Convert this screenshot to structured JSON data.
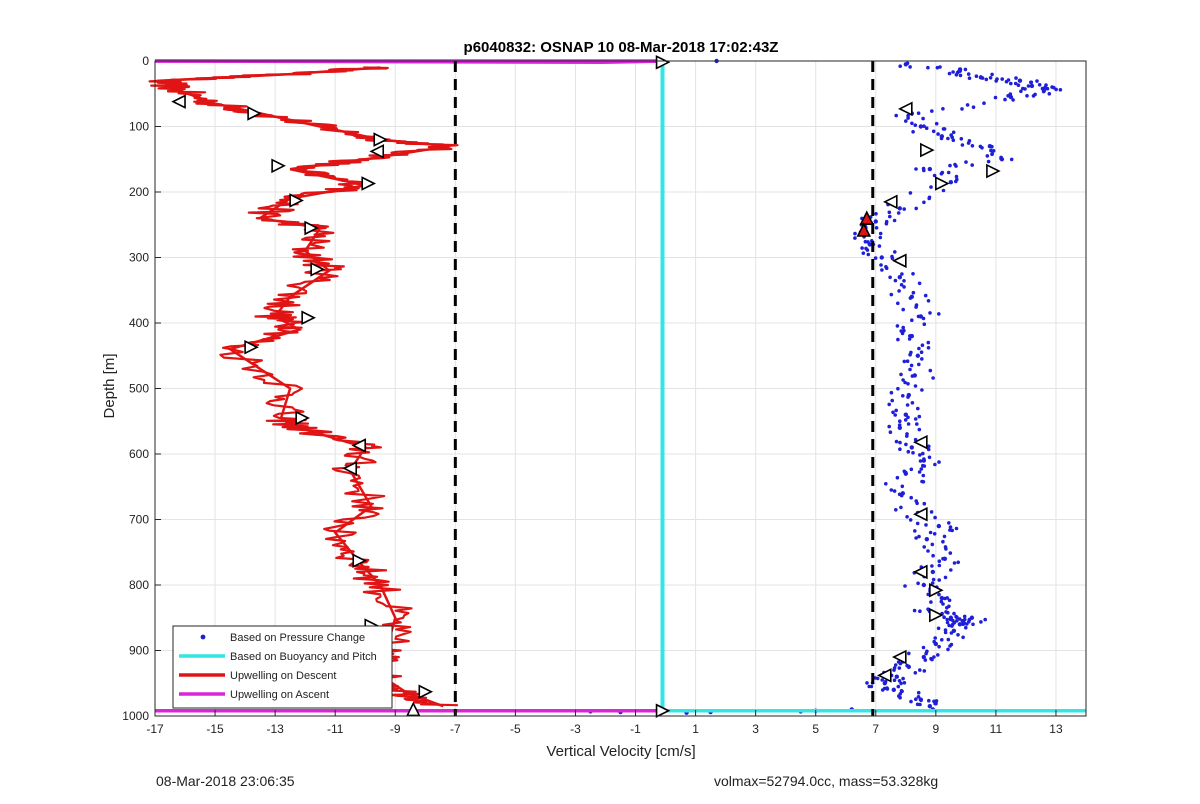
{
  "chart_data": {
    "type": "scatter",
    "title": "p6040832: OSNAP 10 08-Mar-2018 17:02:43Z",
    "xlabel": "Vertical Velocity [cm/s]",
    "ylabel": "Depth [m]",
    "xlim": [
      -17,
      14
    ],
    "ylim": [
      1000,
      0
    ],
    "y_reversed": true,
    "grid": true,
    "xticks": [
      -17,
      -15,
      -13,
      -11,
      -9,
      -7,
      -5,
      -3,
      -1,
      1,
      3,
      5,
      7,
      9,
      11,
      13
    ],
    "yticks": [
      0,
      100,
      200,
      300,
      400,
      500,
      600,
      700,
      800,
      900,
      1000
    ],
    "legend": {
      "placement": "bottom-left",
      "entries": [
        {
          "label": "Based on Pressure Change",
          "color": "#1f1fd9",
          "style": "dot"
        },
        {
          "label": "Based on Buoyancy and Pitch",
          "color": "#33e6e6",
          "style": "line"
        },
        {
          "label": "Upwelling on Descent",
          "color": "#e01414",
          "style": "line"
        },
        {
          "label": "Upwelling on Ascent",
          "color": "#d926d9",
          "style": "line"
        }
      ]
    },
    "reference_lines": [
      {
        "x": -7,
        "style": "dashed",
        "color": "#000000"
      },
      {
        "x": 6.9,
        "style": "dashed",
        "color": "#000000"
      }
    ],
    "horizontal_lines": [
      {
        "name": "Upwelling on Ascent",
        "y": 0,
        "x_from": -17,
        "x_to": -0.1,
        "color": "#d926d9"
      },
      {
        "name": "Based on Buoyancy and Pitch",
        "y": 992,
        "x_from": -0.1,
        "x_to": 14,
        "color": "#33e6e6"
      },
      {
        "name": "Upwelling on Ascent",
        "y": 992,
        "x_from": -17,
        "x_to": -0.1,
        "color": "#d926d9"
      }
    ],
    "series": [
      {
        "name": "Upwelling on Descent",
        "color": "#e01414",
        "x": [
          -9.5,
          -12.5,
          -16.8,
          -16.2,
          -15.0,
          -13.5,
          -11.5,
          -9.5,
          -7.2,
          -10.0,
          -12.5,
          -10.0,
          -12.5,
          -13.5,
          -11.5,
          -12.0,
          -11.2,
          -12.5,
          -13.0,
          -12.2,
          -14.5,
          -12.5,
          -12.8,
          -12.2,
          -10.0,
          -10.5,
          -9.8,
          -11.0,
          -10.2,
          -9.5,
          -9.0,
          -9.3,
          -9.6,
          -8.6,
          -7.4
        ],
        "y": [
          10,
          20,
          30,
          45,
          65,
          80,
          100,
          120,
          130,
          150,
          165,
          190,
          210,
          240,
          255,
          290,
          320,
          360,
          390,
          410,
          440,
          500,
          545,
          560,
          590,
          625,
          680,
          720,
          765,
          800,
          850,
          900,
          935,
          965,
          985
        ]
      },
      {
        "name": "Upwelling on Ascent",
        "color": "#d926d9",
        "x": [
          -17,
          -2.1,
          -0.1
        ],
        "y": [
          0,
          2,
          0
        ]
      },
      {
        "name": "Based on Buoyancy and Pitch",
        "color": "#33e6e6",
        "x": [
          -0.1,
          -0.1
        ],
        "y": [
          0,
          992
        ]
      },
      {
        "name": "Based on Pressure Change",
        "color": "#1f1fd9",
        "x": [
          8.0,
          9.8,
          10.5,
          11.8,
          12.2,
          12.6,
          11.5,
          8.2,
          8.5,
          9.2,
          10.8,
          11.2,
          8.8,
          9.5,
          7.8,
          7.0,
          6.6,
          6.8,
          7.2,
          7.8,
          8.2,
          8.5,
          8.2,
          8.4,
          8.3,
          8.1,
          8.0,
          7.8,
          8.2,
          8.6,
          8.0,
          7.9,
          8.4,
          9.1,
          8.7,
          9.3,
          8.9,
          8.6,
          9.2,
          8.8,
          9.5,
          9.8,
          10.2,
          9.6,
          9.0,
          8.6,
          8.1,
          7.7,
          7.3,
          7.6,
          8.5,
          8.8,
          8.9,
          5.0,
          4.5,
          6.2,
          1.5,
          -2.5,
          -1.5,
          0.7,
          1.7
        ],
        "y": [
          5,
          15,
          25,
          30,
          38,
          45,
          55,
          80,
          100,
          115,
          130,
          150,
          165,
          185,
          225,
          245,
          260,
          280,
          300,
          330,
          360,
          390,
          420,
          450,
          480,
          510,
          540,
          560,
          590,
          610,
          630,
          660,
          690,
          710,
          730,
          760,
          780,
          800,
          820,
          840,
          850,
          860,
          850,
          870,
          890,
          910,
          925,
          940,
          950,
          960,
          975,
          985,
          990,
          992,
          993,
          990,
          994,
          993,
          994,
          995,
          0
        ]
      }
    ],
    "triangle_markers": [
      {
        "x": -0.1,
        "y": 2,
        "dir": "right",
        "fill": "#ffffff"
      },
      {
        "x": -16.2,
        "y": 62,
        "dir": "left",
        "fill": "#ffffff"
      },
      {
        "x": -13.7,
        "y": 80,
        "dir": "right",
        "fill": "#ffffff"
      },
      {
        "x": -9.5,
        "y": 120,
        "dir": "right",
        "fill": "#ffffff"
      },
      {
        "x": -9.6,
        "y": 138,
        "dir": "left",
        "fill": "#ffffff"
      },
      {
        "x": -12.9,
        "y": 160,
        "dir": "right",
        "fill": "#ffffff"
      },
      {
        "x": -9.9,
        "y": 187,
        "dir": "right",
        "fill": "#ffffff"
      },
      {
        "x": -12.3,
        "y": 213,
        "dir": "right",
        "fill": "#ffffff"
      },
      {
        "x": -11.8,
        "y": 255,
        "dir": "right",
        "fill": "#ffffff"
      },
      {
        "x": -11.6,
        "y": 318,
        "dir": "right",
        "fill": "#ffffff"
      },
      {
        "x": -11.9,
        "y": 392,
        "dir": "right",
        "fill": "#ffffff"
      },
      {
        "x": -13.8,
        "y": 437,
        "dir": "right",
        "fill": "#ffffff"
      },
      {
        "x": -12.1,
        "y": 545,
        "dir": "right",
        "fill": "#ffffff"
      },
      {
        "x": -10.2,
        "y": 587,
        "dir": "left",
        "fill": "#ffffff"
      },
      {
        "x": -10.5,
        "y": 622,
        "dir": "left",
        "fill": "#ffffff"
      },
      {
        "x": -10.2,
        "y": 763,
        "dir": "right",
        "fill": "#ffffff"
      },
      {
        "x": -9.8,
        "y": 862,
        "dir": "right",
        "fill": "#ffffff"
      },
      {
        "x": -9.5,
        "y": 898,
        "dir": "right",
        "fill": "#ffffff"
      },
      {
        "x": -9.8,
        "y": 935,
        "dir": "right",
        "fill": "#ffffff"
      },
      {
        "x": -8.0,
        "y": 963,
        "dir": "right",
        "fill": "#ffffff"
      },
      {
        "x": -8.4,
        "y": 990,
        "dir": "up",
        "fill": "#ffffff"
      },
      {
        "x": -0.1,
        "y": 992,
        "dir": "right",
        "fill": "#ffffff"
      },
      {
        "x": 8.0,
        "y": 73,
        "dir": "left",
        "fill": "#ffffff"
      },
      {
        "x": 8.7,
        "y": 136,
        "dir": "right",
        "fill": "#ffffff"
      },
      {
        "x": 10.9,
        "y": 168,
        "dir": "right",
        "fill": "#ffffff"
      },
      {
        "x": 9.2,
        "y": 187,
        "dir": "right",
        "fill": "#ffffff"
      },
      {
        "x": 7.5,
        "y": 215,
        "dir": "left",
        "fill": "#ffffff"
      },
      {
        "x": 6.7,
        "y": 240,
        "dir": "up",
        "fill": "#e01414"
      },
      {
        "x": 6.6,
        "y": 258,
        "dir": "up",
        "fill": "#e01414"
      },
      {
        "x": 7.8,
        "y": 305,
        "dir": "left",
        "fill": "#ffffff"
      },
      {
        "x": 8.5,
        "y": 582,
        "dir": "left",
        "fill": "#ffffff"
      },
      {
        "x": 8.5,
        "y": 692,
        "dir": "left",
        "fill": "#ffffff"
      },
      {
        "x": 8.5,
        "y": 780,
        "dir": "left",
        "fill": "#ffffff"
      },
      {
        "x": 9.0,
        "y": 808,
        "dir": "right",
        "fill": "#ffffff"
      },
      {
        "x": 9.0,
        "y": 846,
        "dir": "right",
        "fill": "#ffffff"
      },
      {
        "x": 7.8,
        "y": 910,
        "dir": "left",
        "fill": "#ffffff"
      },
      {
        "x": 7.3,
        "y": 938,
        "dir": "left",
        "fill": "#ffffff"
      }
    ]
  },
  "footer": {
    "left_timestamp": "08-Mar-2018 23:06:35",
    "right_info": "volmax=52794.0cc, mass=53.328kg"
  }
}
